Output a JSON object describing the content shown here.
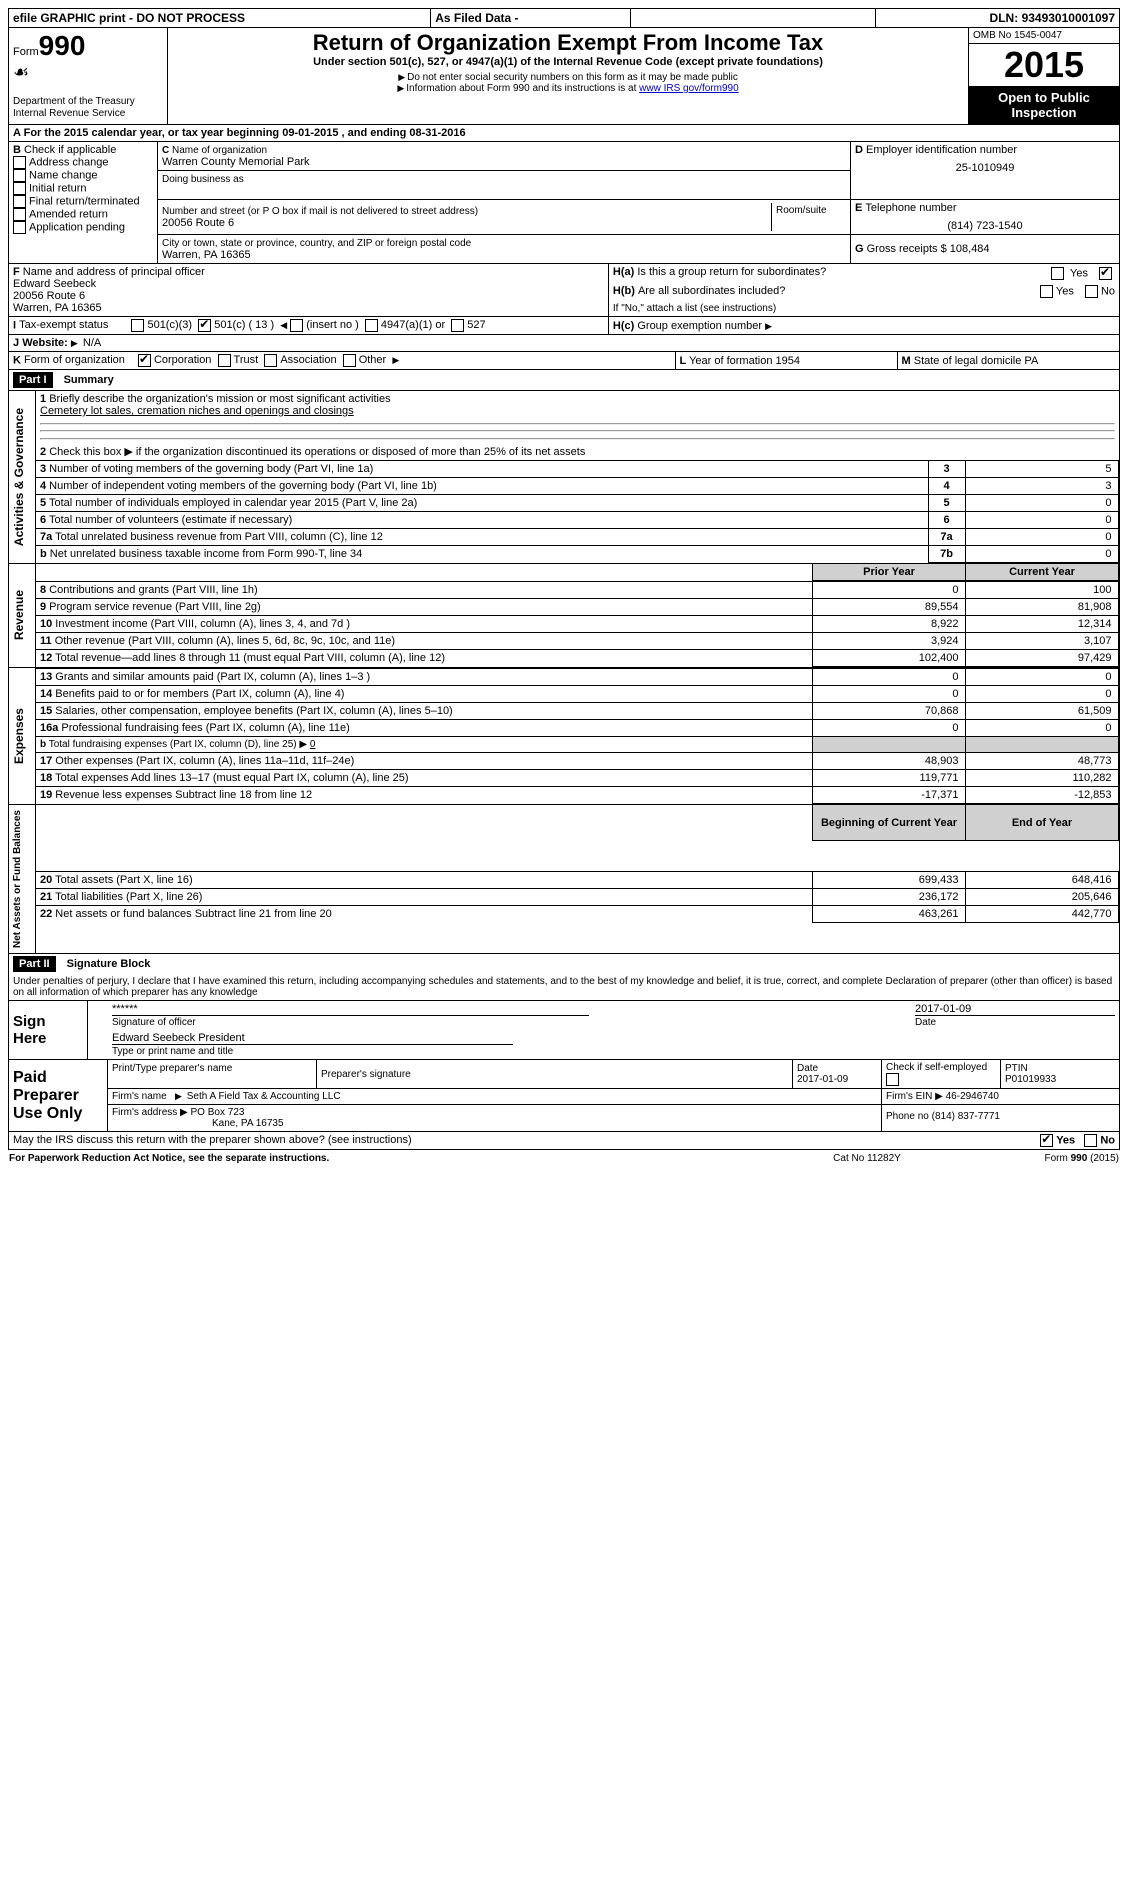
{
  "topbar": {
    "efile": "efile GRAPHIC print - DO NOT PROCESS",
    "asfiled": "As Filed Data -",
    "dln_label": "DLN:",
    "dln": "93493010001097"
  },
  "header": {
    "form_label": "Form",
    "form_no": "990",
    "dept": "Department of the Treasury",
    "irs": "Internal Revenue Service",
    "title": "Return of Organization Exempt From Income Tax",
    "subtitle": "Under section 501(c), 527, or 4947(a)(1) of the Internal Revenue Code (except private foundations)",
    "note1": "Do not enter social security numbers on this form as it may be made public",
    "note2": "Information about Form 990 and its instructions is at ",
    "note2_link": "www IRS gov/form990",
    "omb": "OMB No 1545-0047",
    "year": "2015",
    "open": "Open to Public Inspection"
  },
  "A": {
    "line": "For the 2015 calendar year, or tax year beginning 09-01-2015   , and ending 08-31-2016"
  },
  "B": {
    "label": "Check if applicable",
    "opts": [
      "Address change",
      "Name change",
      "Initial return",
      "Final return/terminated",
      "Amended return",
      "Application pending"
    ]
  },
  "C": {
    "name_label": "Name of organization",
    "name": "Warren County Memorial Park",
    "dba_label": "Doing business as",
    "street_label": "Number and street (or P O box if mail is not delivered to street address)",
    "room_label": "Room/suite",
    "street": "20056 Route 6",
    "city_label": "City or town, state or province, country, and ZIP or foreign postal code",
    "city": "Warren, PA 16365"
  },
  "D": {
    "label": "Employer identification number",
    "val": "25-1010949"
  },
  "E": {
    "label": "Telephone number",
    "val": "(814) 723-1540"
  },
  "G": {
    "label": "Gross receipts $",
    "val": "108,484"
  },
  "F": {
    "label": "Name and address of principal officer",
    "name": "Edward Seebeck",
    "street": "20056 Route 6",
    "city": "Warren, PA  16365"
  },
  "H": {
    "a_label": "Is this a group return for subordinates?",
    "a_val": "No",
    "b_label": "Are all subordinates included?",
    "b_note": "If \"No,\" attach a list  (see instructions)",
    "c_label": "Group exemption number"
  },
  "I": {
    "label": "Tax-exempt status",
    "opts": [
      "501(c)(3)",
      "501(c) ( 13 )",
      "(insert no )",
      "4947(a)(1) or",
      "527"
    ],
    "checked_idx": 1
  },
  "J": {
    "label": "Website:",
    "val": "N/A"
  },
  "K": {
    "label": "Form of organization",
    "opts": [
      "Corporation",
      "Trust",
      "Association",
      "Other"
    ],
    "checked_idx": 0
  },
  "L": {
    "label": "Year of formation",
    "val": "1954"
  },
  "M": {
    "label": "State of legal domicile",
    "val": "PA"
  },
  "partI": {
    "hdr": "Part I",
    "title": "Summary",
    "q1_label": "Briefly describe the organization's mission or most significant activities",
    "q1_val": "Cemetery lot sales, cremation niches and openings and closings",
    "q2": "Check this box ▶       if the organization discontinued its operations or disposed of more than 25% of its net assets",
    "rows_gov": [
      {
        "n": "3",
        "label": "Number of voting members of the governing body (Part VI, line 1a)",
        "box": "3",
        "val": "5"
      },
      {
        "n": "4",
        "label": "Number of independent voting members of the governing body (Part VI, line 1b)",
        "box": "4",
        "val": "3"
      },
      {
        "n": "5",
        "label": "Total number of individuals employed in calendar year 2015 (Part V, line 2a)",
        "box": "5",
        "val": "0"
      },
      {
        "n": "6",
        "label": "Total number of volunteers (estimate if necessary)",
        "box": "6",
        "val": "0"
      },
      {
        "n": "7a",
        "label": "Total unrelated business revenue from Part VIII, column (C), line 12",
        "box": "7a",
        "val": "0"
      },
      {
        "n": "b",
        "label": "Net unrelated business taxable income from Form 990-T, line 34",
        "box": "7b",
        "val": "0"
      }
    ],
    "col_prior": "Prior Year",
    "col_current": "Current Year",
    "rows_rev": [
      {
        "n": "8",
        "label": "Contributions and grants (Part VIII, line 1h)",
        "p": "0",
        "c": "100"
      },
      {
        "n": "9",
        "label": "Program service revenue (Part VIII, line 2g)",
        "p": "89,554",
        "c": "81,908"
      },
      {
        "n": "10",
        "label": "Investment income (Part VIII, column (A), lines 3, 4, and 7d )",
        "p": "8,922",
        "c": "12,314"
      },
      {
        "n": "11",
        "label": "Other revenue (Part VIII, column (A), lines 5, 6d, 8c, 9c, 10c, and 11e)",
        "p": "3,924",
        "c": "3,107"
      },
      {
        "n": "12",
        "label": "Total revenue—add lines 8 through 11 (must equal Part VIII, column (A), line 12)",
        "p": "102,400",
        "c": "97,429"
      }
    ],
    "rows_exp": [
      {
        "n": "13",
        "label": "Grants and similar amounts paid (Part IX, column (A), lines 1–3 )",
        "p": "0",
        "c": "0"
      },
      {
        "n": "14",
        "label": "Benefits paid to or for members (Part IX, column (A), line 4)",
        "p": "0",
        "c": "0"
      },
      {
        "n": "15",
        "label": "Salaries, other compensation, employee benefits (Part IX, column (A), lines 5–10)",
        "p": "70,868",
        "c": "61,509"
      },
      {
        "n": "16a",
        "label": "Professional fundraising fees (Part IX, column (A), line 11e)",
        "p": "0",
        "c": "0"
      },
      {
        "n": "b",
        "label": "Total fundraising expenses (Part IX, column (D), line 25) ▶",
        "p": "",
        "c": "",
        "note": "0",
        "shade": true
      },
      {
        "n": "17",
        "label": "Other expenses (Part IX, column (A), lines 11a–11d, 11f–24e)",
        "p": "48,903",
        "c": "48,773"
      },
      {
        "n": "18",
        "label": "Total expenses  Add lines 13–17 (must equal Part IX, column (A), line 25)",
        "p": "119,771",
        "c": "110,282"
      },
      {
        "n": "19",
        "label": "Revenue less expenses  Subtract line 18 from line 12",
        "p": "-17,371",
        "c": "-12,853"
      }
    ],
    "col_boy": "Beginning of Current Year",
    "col_eoy": "End of Year",
    "rows_net": [
      {
        "n": "20",
        "label": "Total assets (Part X, line 16)",
        "p": "699,433",
        "c": "648,416"
      },
      {
        "n": "21",
        "label": "Total liabilities (Part X, line 26)",
        "p": "236,172",
        "c": "205,646"
      },
      {
        "n": "22",
        "label": "Net assets or fund balances  Subtract line 21 from line 20",
        "p": "463,261",
        "c": "442,770"
      }
    ],
    "sec_gov": "Activities & Governance",
    "sec_rev": "Revenue",
    "sec_exp": "Expenses",
    "sec_net": "Net Assets or Fund Balances"
  },
  "partII": {
    "hdr": "Part II",
    "title": "Signature Block",
    "perjury": "Under penalties of perjury, I declare that I have examined this return, including accompanying schedules and statements, and to the best of my knowledge and belief, it is true, correct, and complete  Declaration of preparer (other than officer) is based on all information of which preparer has any knowledge",
    "sign_here": "Sign Here",
    "sig_stars": "******",
    "sig_date": "2017-01-09",
    "sig_of_officer": "Signature of officer",
    "date_label": "Date",
    "officer_name": "Edward Seebeck  President",
    "type_name": "Type or print name and title",
    "paid": "Paid Preparer Use Only",
    "prep_name_label": "Print/Type preparer's name",
    "prep_sig_label": "Preparer's signature",
    "prep_date_label": "Date",
    "prep_date": "2017-01-09",
    "check_if": "Check        if self-employed",
    "ptin_label": "PTIN",
    "ptin": "P01019933",
    "firm_name_label": "Firm's name",
    "firm_name": "Seth A Field Tax & Accounting LLC",
    "firm_ein_label": "Firm's EIN ▶",
    "firm_ein": "46-2946740",
    "firm_addr_label": "Firm's address ▶",
    "firm_addr1": "PO Box 723",
    "firm_addr2": "Kane, PA  16735",
    "phone_label": "Phone no",
    "phone": "(814) 837-7771",
    "may_irs": "May the IRS discuss this return with the preparer shown above? (see instructions)",
    "yes": "Yes",
    "no": "No",
    "paperwork": "For Paperwork Reduction Act Notice, see the separate instructions.",
    "catno": "Cat No  11282Y",
    "formno": "Form 990 (2015)"
  }
}
